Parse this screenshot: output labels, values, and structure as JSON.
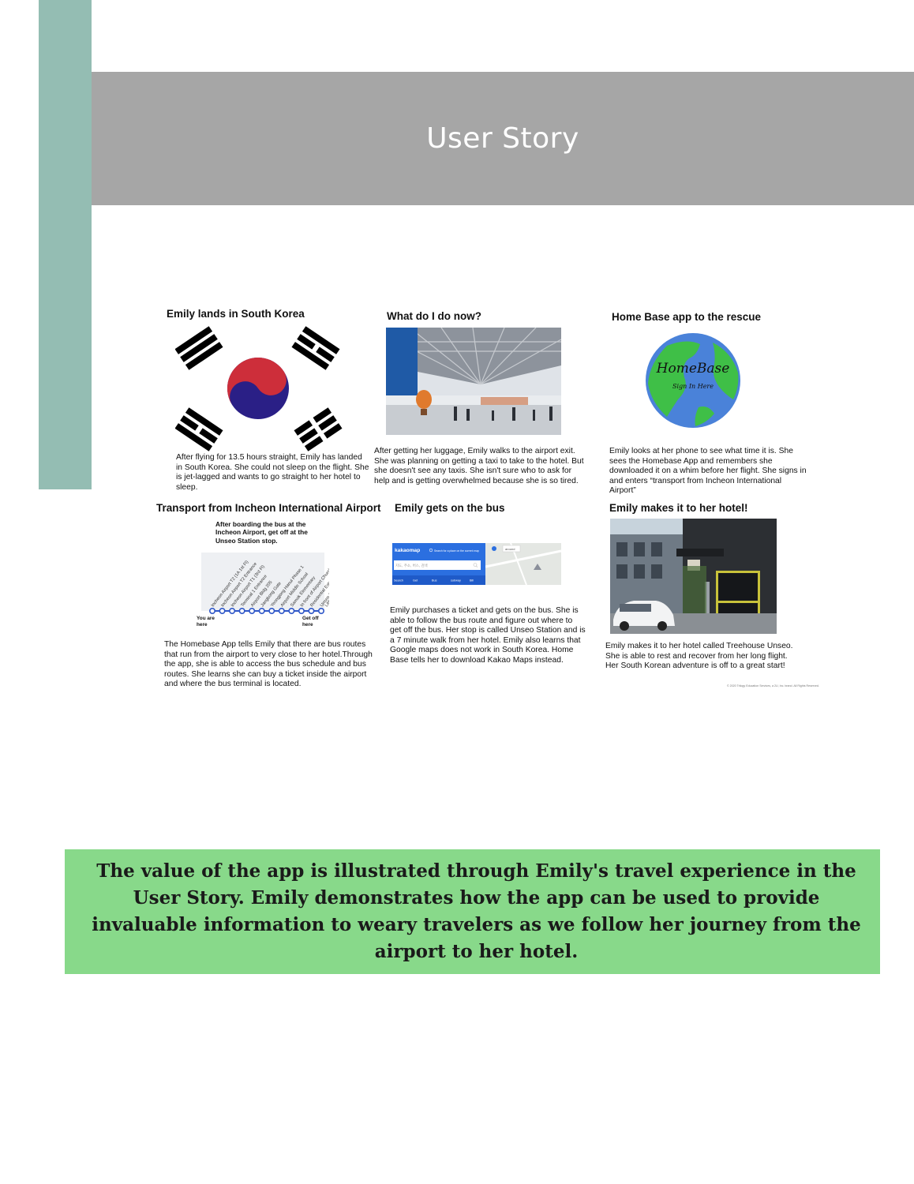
{
  "page": {
    "title": "User Story"
  },
  "storyboard": {
    "panels": [
      {
        "title": "Emily lands in South Korea",
        "text": "After flying for 13.5 hours straight, Emily has landed in South Korea. She could not sleep on the flight. She is jet-lagged  and wants to go straight to her hotel to sleep."
      },
      {
        "title": "What do I do now?",
        "text": "After getting her luggage, Emily walks to the airport exit. She was planning on getting a taxi to take to the hotel. But she doesn't see any taxis. She isn't sure who to ask for help and is getting overwhelmed because she is so tired."
      },
      {
        "title": "Home Base app to the rescue",
        "text": "Emily looks at her phone to see what time it is. She sees the Homebase App and remembers she downloaded it on a whim before her flight. She signs in and enters “transport from Incheon International Airport”"
      },
      {
        "title": "Transport from Incheon International Airport",
        "text": "The Homebase App tells Emily that there are bus routes that run from the airport to very close to her hotel.Through the app, she is able to access the bus schedule and bus routes. She learns she can buy a ticket inside the airport and where the bus terminal is located."
      },
      {
        "title": "Emily gets on the bus",
        "text": "Emily purchases a ticket and gets on the bus. She is able to follow the bus route and figure out where to get off the bus. Her stop is called Unseo Station and is a 7 minute walk from her hotel. Emily also learns that Google maps does not work in South Korea. Home Base tells her to download Kakao Maps instead."
      },
      {
        "title": "Emily makes it to her hotel!",
        "text": "Emily makes it to her hotel called Treehouse Unseo. She is able to rest and recover from her long flight. Her South Korean adventure is off to a great start!"
      }
    ],
    "logo": {
      "name": "HomeBase",
      "tagline": "Sign In Here"
    },
    "bus_map": {
      "instruction": "After boarding the bus at the Incheon Airport, get off at the Unseo Station stop.",
      "you_are_here": "You are here",
      "get_off_here": "Get off here",
      "stops": [
        "Incheon Airport T2 (1A 1st Fl)",
        "Incheon Airport T2 Entrance",
        "Incheon Airport T1 (3rd Fl)",
        "Terminal 1 Entrance",
        "Airport Bldg 205",
        "Jangbong Gate",
        "Yeongjong Hanul Phase 1",
        "Airport Middle School",
        "Samok Elementary",
        "In front of Airport Church",
        "Residential Estate",
        "Unseo Station",
        "Littlesinga..."
      ],
      "stop_count": 12
    },
    "kakao": {
      "brand": "kakaomap",
      "search_hint": "Search for a place on the current map",
      "input_placeholder": "지도, 주소, 버스, 검색",
      "tabs": [
        "Search",
        "Get",
        "Bus",
        "subway",
        "Bill"
      ]
    },
    "copyright": "© 2020 Trilogy Education Services, a 2U, Inc. brand. All Rights Reserved."
  },
  "value_statement": "The value of the app is illustrated through Emily's travel experience in the User Story. Emily demonstrates how the app can be used to provide invaluable information to weary travelers as we follow her journey from the airport to her hotel.",
  "colors": {
    "side_bar": "#94bdb3",
    "title_band": "#a6a6a6",
    "value_box": "#88d98a",
    "flag_red": "#cd2e3a",
    "flag_blue": "#2a1f86"
  }
}
